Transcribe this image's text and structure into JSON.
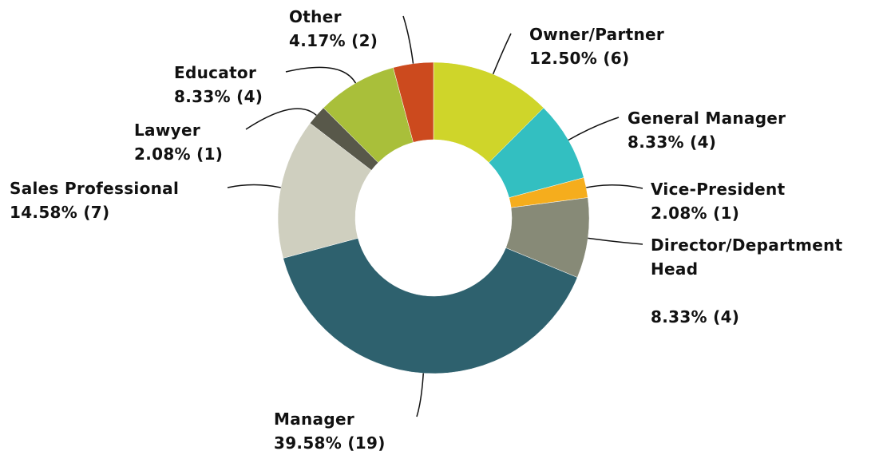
{
  "chart_data": {
    "type": "donut",
    "categories": [
      "Owner/Partner",
      "General Manager",
      "Vice-President",
      "Director/Department Head",
      "Manager",
      "Sales Professional",
      "Lawyer",
      "Educator",
      "Other"
    ],
    "values": [
      12.5,
      8.33,
      2.08,
      8.33,
      39.58,
      14.58,
      2.08,
      8.33,
      4.17
    ],
    "value_labels": [
      "12.50% (6)",
      "8.33% (4)",
      "2.08% (1)",
      "8.33% (4)",
      "39.58% (19)",
      "14.58% (7)",
      "2.08% (1)",
      "8.33% (4)",
      "4.17% (2)"
    ],
    "colors": [
      "#cfd52a",
      "#33bfc1",
      "#f5ad1d",
      "#878a77",
      "#2e616e",
      "#cfcfbf",
      "#58584a",
      "#a9bf3a",
      "#cc4a1e"
    ]
  }
}
